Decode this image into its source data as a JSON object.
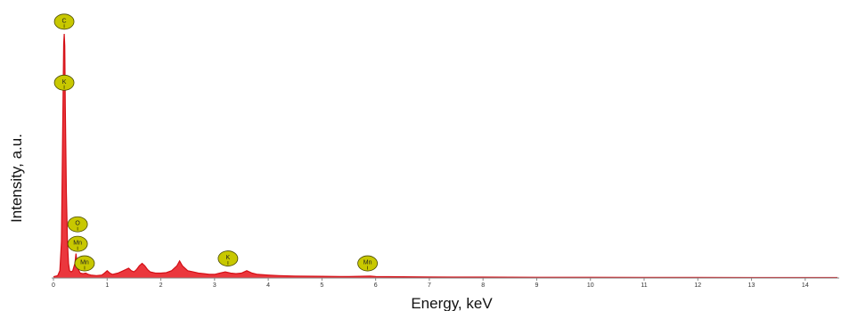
{
  "chart_data": {
    "type": "line",
    "title": "",
    "xlabel": "Energy, keV",
    "ylabel": "Intensity, a.u.",
    "xlim": [
      0,
      14.6
    ],
    "ylim": [
      0,
      100
    ],
    "x_ticks": [
      "0",
      "1",
      "2",
      "3",
      "4",
      "5",
      "6",
      "7",
      "8",
      "9",
      "10",
      "11",
      "12",
      "13",
      "14"
    ],
    "grid": false,
    "legend": "none",
    "series": [
      {
        "color": "#e8141b",
        "x": [
          0.0,
          0.08,
          0.12,
          0.15,
          0.17,
          0.19,
          0.2,
          0.21,
          0.22,
          0.24,
          0.26,
          0.28,
          0.3,
          0.33,
          0.36,
          0.4,
          0.42,
          0.45,
          0.5,
          0.55,
          0.6,
          0.65,
          0.7,
          0.8,
          0.9,
          0.95,
          1.0,
          1.05,
          1.1,
          1.2,
          1.3,
          1.4,
          1.45,
          1.5,
          1.55,
          1.6,
          1.65,
          1.7,
          1.75,
          1.8,
          1.9,
          2.0,
          2.1,
          2.2,
          2.3,
          2.35,
          2.4,
          2.5,
          2.6,
          2.7,
          2.8,
          2.9,
          3.0,
          3.1,
          3.2,
          3.3,
          3.4,
          3.5,
          3.6,
          3.7,
          3.8,
          4.0,
          4.2,
          4.5,
          5.0,
          5.5,
          5.9,
          6.0,
          6.5,
          7.0,
          8.0,
          9.0,
          10.0,
          11.0,
          12.0,
          13.0,
          14.0,
          14.6
        ],
        "y": [
          0.5,
          1.0,
          3.0,
          15.0,
          55.0,
          96.0,
          100.0,
          95.0,
          70.0,
          35.0,
          15.0,
          6.0,
          3.0,
          2.5,
          3.0,
          6.0,
          10.0,
          4.0,
          2.0,
          1.8,
          2.0,
          1.5,
          1.2,
          1.0,
          1.2,
          2.0,
          3.0,
          2.0,
          1.5,
          2.0,
          3.0,
          4.0,
          3.0,
          2.5,
          3.5,
          5.0,
          6.0,
          5.0,
          3.5,
          2.5,
          2.0,
          2.0,
          2.2,
          3.0,
          5.0,
          7.0,
          5.0,
          3.0,
          2.5,
          2.0,
          1.8,
          1.5,
          1.5,
          2.0,
          2.5,
          2.0,
          1.8,
          2.0,
          3.0,
          2.0,
          1.5,
          1.2,
          1.0,
          0.8,
          0.7,
          0.6,
          0.8,
          0.6,
          0.5,
          0.4,
          0.35,
          0.3,
          0.3,
          0.25,
          0.25,
          0.2,
          0.2,
          0.2
        ]
      }
    ],
    "annotations": [
      {
        "label": "C",
        "x": 0.2,
        "y": 105
      },
      {
        "label": "K",
        "x": 0.2,
        "y": 80
      },
      {
        "label": "O",
        "x": 0.45,
        "y": 22
      },
      {
        "label": "Mn",
        "x": 0.45,
        "y": 14
      },
      {
        "label": "Mn",
        "x": 0.58,
        "y": 6
      },
      {
        "label": "K",
        "x": 3.25,
        "y": 8
      },
      {
        "label": "Mn",
        "x": 5.85,
        "y": 6
      }
    ],
    "marker_color": "#c8c800"
  }
}
